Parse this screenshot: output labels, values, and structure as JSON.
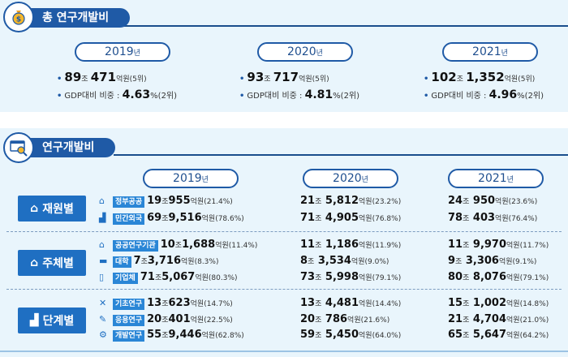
{
  "total": {
    "title": "총 연구개발비",
    "icon": "money-bag-icon",
    "years": [
      {
        "year": "2019",
        "suffix": "년",
        "amount_jo": "89",
        "jo": "조",
        "amount_eok": "471",
        "unit": "억원",
        "rank": "(5위)",
        "gdp_label": "GDP대비 비중 :",
        "gdp_value": "4.63",
        "gdp_unit": "%",
        "gdp_rank": "(2위)"
      },
      {
        "year": "2020",
        "suffix": "년",
        "amount_jo": "93",
        "jo": "조",
        "amount_eok": "717",
        "unit": "억원",
        "rank": "(5위)",
        "gdp_label": "GDP대비 비중 :",
        "gdp_value": "4.81",
        "gdp_unit": "%",
        "gdp_rank": "(2위)"
      },
      {
        "year": "2021",
        "suffix": "년",
        "amount_jo": "102",
        "jo": "조",
        "amount_eok": "1,352",
        "unit": "억원",
        "rank": "(5위)",
        "gdp_label": "GDP대비 비중 :",
        "gdp_value": "4.96",
        "gdp_unit": "%",
        "gdp_rank": "(2위)"
      }
    ]
  },
  "rnd": {
    "title": "연구개발비",
    "icon": "monitor-search-icon",
    "years": [
      {
        "year": "2019",
        "suffix": "년"
      },
      {
        "year": "2020",
        "suffix": "년"
      },
      {
        "year": "2021",
        "suffix": "년"
      }
    ],
    "categories": [
      {
        "label": "재원별",
        "rows": [
          {
            "tag": "정부공공",
            "values": [
              {
                "jo": "19",
                "eok": "955",
                "pct": "(21.4%)"
              },
              {
                "jo": "21",
                "eok": "5,812",
                "pct": "(23.2%)"
              },
              {
                "jo": "24",
                "eok": "950",
                "pct": "(23.6%)"
              }
            ]
          },
          {
            "tag": "민간외국",
            "values": [
              {
                "jo": "69",
                "eok": "9,516",
                "pct": "(78.6%)"
              },
              {
                "jo": "71",
                "eok": "4,905",
                "pct": "(76.8%)"
              },
              {
                "jo": "78",
                "eok": "403",
                "pct": "(76.4%)"
              }
            ]
          }
        ]
      },
      {
        "label": "주체별",
        "rows": [
          {
            "tag": "공공연구기관",
            "values": [
              {
                "jo": "10",
                "eok": "1,688",
                "pct": "(11.4%)"
              },
              {
                "jo": "11",
                "eok": "1,186",
                "pct": "(11.9%)"
              },
              {
                "jo": "11",
                "eok": "9,970",
                "pct": "(11.7%)"
              }
            ]
          },
          {
            "tag": "대학",
            "values": [
              {
                "jo": "7",
                "eok": "3,716",
                "pct": "(8.3%)"
              },
              {
                "jo": "8",
                "eok": "3,534",
                "pct": "(9.0%)"
              },
              {
                "jo": "9",
                "eok": "3,306",
                "pct": "(9.1%)"
              }
            ]
          },
          {
            "tag": "기업체",
            "values": [
              {
                "jo": "71",
                "eok": "5,067",
                "pct": "(80.3%)"
              },
              {
                "jo": "73",
                "eok": "5,998",
                "pct": "(79.1%)"
              },
              {
                "jo": "80",
                "eok": "8,076",
                "pct": "(79.1%)"
              }
            ]
          }
        ]
      },
      {
        "label": "단계별",
        "rows": [
          {
            "tag": "기초연구",
            "values": [
              {
                "jo": "13",
                "eok": "623",
                "pct": "(14.7%)"
              },
              {
                "jo": "13",
                "eok": "4,481",
                "pct": "(14.4%)"
              },
              {
                "jo": "15",
                "eok": "1,002",
                "pct": "(14.8%)"
              }
            ]
          },
          {
            "tag": "응용연구",
            "values": [
              {
                "jo": "20",
                "eok": "401",
                "pct": "(22.5%)"
              },
              {
                "jo": "20",
                "eok": "786",
                "pct": "(21.6%)"
              },
              {
                "jo": "21",
                "eok": "4,704",
                "pct": "(21.0%)"
              }
            ]
          },
          {
            "tag": "개발연구",
            "values": [
              {
                "jo": "55",
                "eok": "9,446",
                "pct": "(62.8%)"
              },
              {
                "jo": "59",
                "eok": "5,450",
                "pct": "(64.0%)"
              },
              {
                "jo": "65",
                "eok": "5,647",
                "pct": "(64.2%)"
              }
            ]
          }
        ]
      }
    ],
    "jo": "조",
    "unit": "억원"
  },
  "colors": {
    "primary": "#1f5aa6",
    "accent": "#2a86d6",
    "background": "#e9f5fc"
  }
}
